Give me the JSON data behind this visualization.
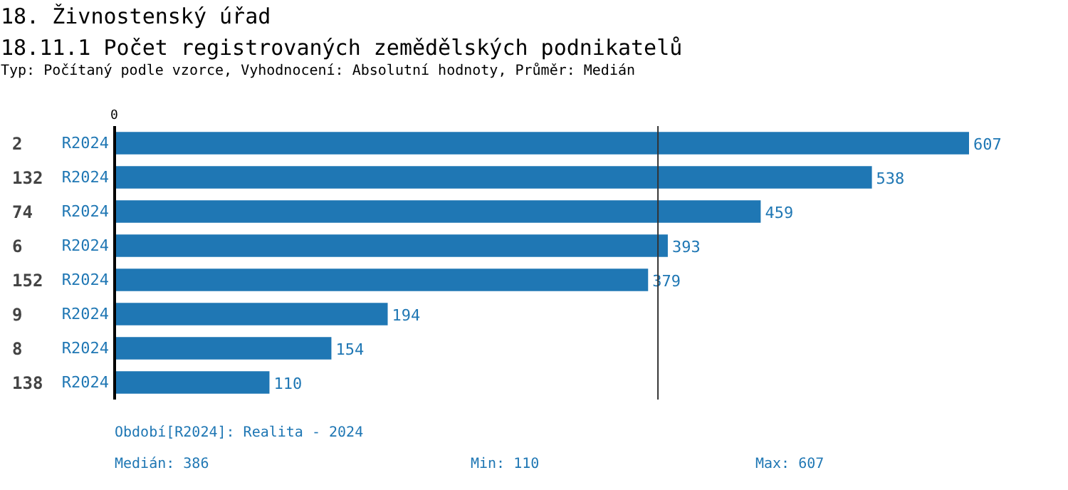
{
  "chart_data": {
    "type": "bar",
    "orientation": "horizontal",
    "title": "18. Živnostenský úřad",
    "subtitle": "18.11.1 Počet registrovaných zemědělských podnikatelů",
    "categories": [
      "2",
      "132",
      "74",
      "6",
      "152",
      "9",
      "8",
      "138"
    ],
    "series": [
      {
        "name": "R2024",
        "color": "#1f77b4",
        "values": [
          607,
          538,
          459,
          393,
          379,
          194,
          154,
          110
        ]
      }
    ],
    "data_labels": true,
    "ref_lines": [
      {
        "axis": "x",
        "value": 386,
        "color": "#333333"
      }
    ],
    "annotations": [
      "0",
      "Typ: Počítaný podle vzorce, Vyhodnocení: Absolutní hodnoty, Průměr: Medián",
      "Období[R2024]: Realita - 2024",
      "Medián: 386",
      "Min: 110",
      "Max: 607"
    ]
  }
}
